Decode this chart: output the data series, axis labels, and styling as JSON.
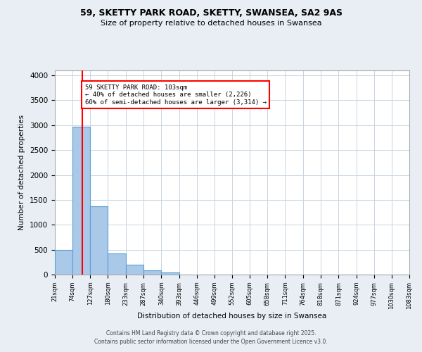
{
  "title1": "59, SKETTY PARK ROAD, SKETTY, SWANSEA, SA2 9AS",
  "title2": "Size of property relative to detached houses in Swansea",
  "xlabel": "Distribution of detached houses by size in Swansea",
  "ylabel": "Number of detached properties",
  "bin_edges": [
    21,
    74,
    127,
    180,
    233,
    287,
    340,
    393,
    446,
    499,
    552,
    605,
    658,
    711,
    764,
    818,
    871,
    924,
    977,
    1030,
    1083
  ],
  "bar_heights": [
    500,
    2970,
    1370,
    420,
    195,
    80,
    40,
    5,
    5,
    5,
    0,
    0,
    0,
    0,
    0,
    0,
    0,
    0,
    0,
    5
  ],
  "bar_color": "#aac8e8",
  "bar_edge_color": "#5a9fd4",
  "property_line_x": 103,
  "annotation_text": "59 SKETTY PARK ROAD: 103sqm\n← 40% of detached houses are smaller (2,226)\n60% of semi-detached houses are larger (3,314) →",
  "annotation_box_color": "white",
  "annotation_box_edge_color": "red",
  "vline_color": "red",
  "ylim": [
    0,
    4100
  ],
  "yticks": [
    0,
    500,
    1000,
    1500,
    2000,
    2500,
    3000,
    3500,
    4000
  ],
  "footer": "Contains HM Land Registry data © Crown copyright and database right 2025.\nContains public sector information licensed under the Open Government Licence v3.0.",
  "background_color": "#e8eef4",
  "plot_background_color": "#ffffff",
  "grid_color": "#c8d4e0"
}
